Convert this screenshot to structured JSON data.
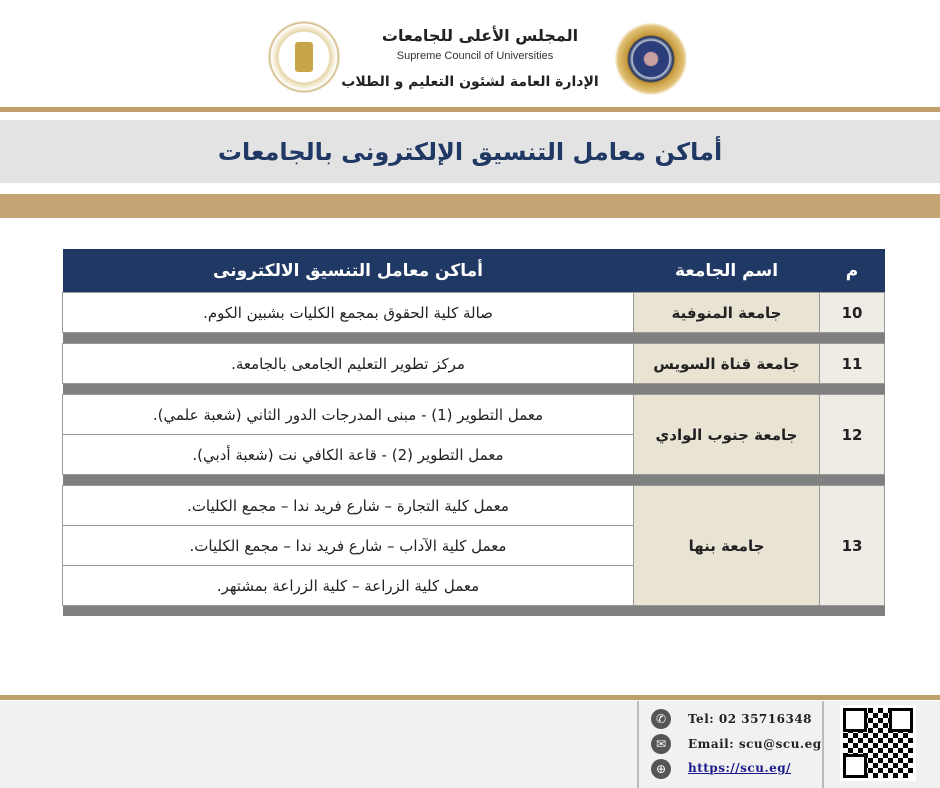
{
  "header": {
    "org_ar": "المجلس الأعلى للجامعات",
    "org_en": "Supreme Council of Universities",
    "dept_ar": "الإدارة العامة لشئون التعليم و الطلاب"
  },
  "title": "أماكن معامل التنسيق الإلكترونى بالجامعات",
  "table": {
    "headers": [
      "م",
      "اسم الجامعة",
      "أماكن معامل التنسيق الالكترونى"
    ],
    "rows": [
      {
        "num": "10",
        "university": "جامعة المنوفية",
        "locations": [
          "صالة كلية الحقوق بمجمع الكليات بشبين الكوم."
        ]
      },
      {
        "num": "11",
        "university": "جامعة قناة السويس",
        "locations": [
          "مركز تطوير التعليم الجامعى بالجامعة."
        ]
      },
      {
        "num": "12",
        "university": "جامعة جنوب الوادي",
        "locations": [
          "معمل التطوير (1) - مبنى المدرجات الدور الثاني (شعبة علمي).",
          "معمل التطوير (2) - قاعة الكافي نت (شعبة أدبي)."
        ]
      },
      {
        "num": "13",
        "university": "جامعة بنها",
        "locations": [
          "معمل كلية التجارة – شارع فريد ندا – مجمع الكليات.",
          "معمل كلية الآداب – شارع فريد ندا – مجمع الكليات.",
          "معمل كلية الزراعة – كلية الزراعة بمشتهر."
        ]
      }
    ]
  },
  "footer": {
    "tel": "Tel: 02 35716348",
    "email": "Email:  scu@scu.eg",
    "url": "https://scu.eg/"
  }
}
